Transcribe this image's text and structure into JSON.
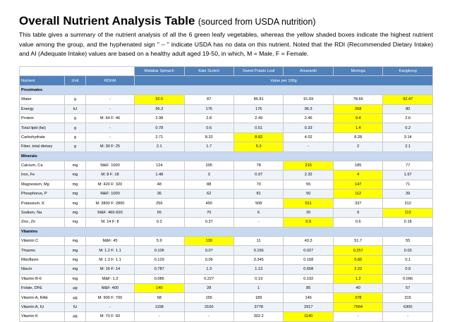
{
  "title": "Overall Nutrient Analysis Table",
  "subtitle": "(sourced from USDA nutrition)",
  "intro": "This table gives a summary of the nutrient analysis of all the 6 green leafy vegetables, whereas the yellow shaded boxes indicate the highest nutrient value among the group, and the hyphenated sign \" – \" indicate USDA has no data on this nutrient. Noted that the RDI (Recommended Dietary Intake) and AI (Adequate Intake) values are based on a healthy adult aged 19-50, in which, M = Male, F = Female.",
  "vegetables": [
    "Malabar Spinach",
    "Kale Scotch",
    "Sweet Potato Leaf",
    "Amaranth",
    "Moringa",
    "Kangkong"
  ],
  "col_nutrient": "Nutrient",
  "col_unit": "Unit",
  "col_rdi": "RDI/AI",
  "col_value": "Value per 100g",
  "colors": {
    "header": "#4f81bd",
    "section": "#c6d9f0",
    "highlight": "#ffff00"
  },
  "sections": [
    {
      "name": "Proximates",
      "rows": [
        {
          "nutrient": "Water",
          "unit": "g",
          "rdi": "-",
          "values": [
            "92.5",
            "87",
            "86.81",
            "91.69",
            "78.66",
            "92.47"
          ],
          "hl": [
            0,
            5
          ]
        },
        {
          "nutrient": "Energy",
          "unit": "kJ",
          "rdi": "-",
          "values": [
            "96.3",
            "176",
            "176",
            "96.3",
            "268",
            "80"
          ],
          "hl": [
            4
          ]
        },
        {
          "nutrient": "Protein",
          "unit": "g",
          "rdi": "M: 64     F: 46",
          "values": [
            "2.98",
            "2.8",
            "2.49",
            "2.46",
            "9.4",
            "2.6"
          ],
          "hl": [
            4
          ]
        },
        {
          "nutrient": "Total lipid (fat)",
          "unit": "g",
          "rdi": "-",
          "values": [
            "0.78",
            "0.6",
            "0.51",
            "0.33",
            "1.4",
            "0.2"
          ],
          "hl": [
            4
          ]
        },
        {
          "nutrient": "Carbohydrate",
          "unit": "g",
          "rdi": "-",
          "values": [
            "2.71",
            "8.32",
            "8.82",
            "4.02",
            "8.28",
            "3.14"
          ],
          "hl": [
            2
          ]
        },
        {
          "nutrient": "Fiber, total dietary",
          "unit": "g",
          "rdi": "M: 30     F: 25",
          "values": [
            "2.1",
            "1.7",
            "5.3",
            "-",
            "2",
            "2.1"
          ],
          "hl": [
            2
          ]
        }
      ]
    },
    {
      "name": "Minerals",
      "rows": [
        {
          "nutrient": "Calcium, Ca",
          "unit": "mg",
          "rdi": "M&F: 1000",
          "values": [
            "124",
            "205",
            "78",
            "215",
            "185",
            "77"
          ],
          "hl": [
            3
          ]
        },
        {
          "nutrient": "Iron, Fe",
          "unit": "mg",
          "rdi": "M: 8     F: 18",
          "values": [
            "1.48",
            "3",
            "0.97",
            "2.32",
            "4",
            "1.67"
          ],
          "hl": [
            4
          ]
        },
        {
          "nutrient": "Magnesium, Mg",
          "unit": "mg",
          "rdi": "M: 420     F: 320",
          "values": [
            "48",
            "88",
            "70",
            "55",
            "147",
            "71"
          ],
          "hl": [
            4
          ]
        },
        {
          "nutrient": "Phosphorus, P",
          "unit": "mg",
          "rdi": "M&F: 1000",
          "values": [
            "36",
            "62",
            "81",
            "50",
            "112",
            "39"
          ],
          "hl": [
            4
          ]
        },
        {
          "nutrient": "Potassium, K",
          "unit": "mg",
          "rdi": "M: 3800     F: 2800",
          "values": [
            "256",
            "450",
            "508",
            "611",
            "337",
            "312"
          ],
          "hl": [
            3
          ]
        },
        {
          "nutrient": "Sodium, Na",
          "unit": "mg",
          "rdi": "M&F: 460-920",
          "values": [
            "55",
            "70",
            "6",
            "20",
            "9",
            "113"
          ],
          "hl": [
            5
          ]
        },
        {
          "nutrient": "Zinc, Zn",
          "unit": "mg",
          "rdi": "M: 14     F: 8",
          "values": [
            "0.3",
            "0.37",
            "-",
            "0.9",
            "0.6",
            "0.18"
          ],
          "hl": [
            3
          ]
        }
      ]
    },
    {
      "name": "Vitamins",
      "rows": [
        {
          "nutrient": "Vitamin C",
          "unit": "mg",
          "rdi": "M&F: 45",
          "values": [
            "5.9",
            "130",
            "11",
            "43.3",
            "51.7",
            "55"
          ],
          "hl": [
            1
          ]
        },
        {
          "nutrient": "Thiamin",
          "unit": "mg",
          "rdi": "M: 1.2     F: 1.1",
          "values": [
            "0.106",
            "0.07",
            "0.156",
            "0.027",
            "0.257",
            "0.03"
          ],
          "hl": [
            4
          ]
        },
        {
          "nutrient": "Riboflavin",
          "unit": "mg",
          "rdi": "M: 1.3     F: 1.1",
          "values": [
            "0.129",
            "0.06",
            "0.345",
            "0.158",
            "0.66",
            "0.1"
          ],
          "hl": [
            4
          ]
        },
        {
          "nutrient": "Niacin",
          "unit": "mg",
          "rdi": "M: 16     F: 14",
          "values": [
            "0.787",
            "1.3",
            "1.13",
            "0.658",
            "2.22",
            "0.9"
          ],
          "hl": [
            4
          ]
        },
        {
          "nutrient": "Vitamin B-6",
          "unit": "mg",
          "rdi": "M&F: 1.3",
          "values": [
            "0.086",
            "0.227",
            "0.19",
            "0.192",
            "1.2",
            "0.096"
          ],
          "hl": [
            4
          ]
        },
        {
          "nutrient": "Folate, DFE",
          "unit": "µg",
          "rdi": "M&F: 400",
          "values": [
            "140",
            "28",
            "1",
            "85",
            "40",
            "57"
          ],
          "hl": [
            0
          ]
        },
        {
          "nutrient": "Vitamin A, RAE",
          "unit": "µg",
          "rdi": "M: 900     F: 700",
          "values": [
            "58",
            "155",
            "189",
            "146",
            "378",
            "315"
          ],
          "hl": [
            4
          ]
        },
        {
          "nutrient": "Vitamin A, IU",
          "unit": "IU",
          "rdi": "-",
          "values": [
            "1158",
            "3100",
            "3778",
            "2917",
            "7564",
            "6300"
          ],
          "hl": [
            4
          ]
        },
        {
          "nutrient": "Vitamin K",
          "unit": "µg",
          "rdi": "M: 70     F: 60",
          "values": [
            "-",
            "-",
            "302.2",
            "1140",
            "-",
            "-"
          ],
          "hl": [
            3
          ]
        }
      ]
    }
  ]
}
